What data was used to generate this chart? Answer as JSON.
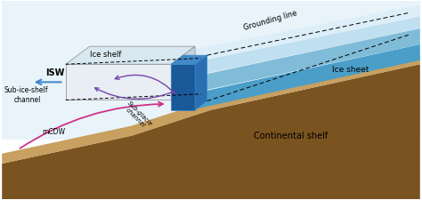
{
  "fig_width": 4.74,
  "fig_height": 2.25,
  "dpi": 100,
  "bg_color": "#ffffff",
  "shelf_brown_light": "#a07840",
  "shelf_brown_mid": "#7a5420",
  "shelf_brown_dark": "#4a2c08",
  "shelf_tan": "#c8a060",
  "water_bg": "#e8f4fa",
  "ocean_light_blue": "#b8ddf0",
  "ice_sheet_dark_blue": "#4a9ec8",
  "ice_sheet_mid_blue": "#80bcd8",
  "ice_sheet_light_blue": "#c0dff0",
  "ice_sheet_white": "#deeef8",
  "ice_shelf_face": "#e8eef4",
  "ice_shelf_top": "#d8e8f0",
  "ice_shelf_side": "#c0d4e4",
  "sub_glac_blue": "#1a5898",
  "sub_glac_light": "#4488c8",
  "arrow_isw_color": "#4488cc",
  "arrow_melt_color": "#7744aa",
  "mcdw_color": "#cc3388",
  "grounding_line_label": "Grounding line",
  "ice_shelf_label": "Ice shelf",
  "ice_sheet_label": "Ice sheet",
  "isw_label": "ISW",
  "sub_ice_shelf_label1": "Sub-ice-shelf",
  "sub_ice_shelf_label2": "channel",
  "sub_glacial_label": "Sub-glacie\nchannel",
  "continental_shelf_label": "Continental shelf",
  "mcdw_label": "mCDW"
}
